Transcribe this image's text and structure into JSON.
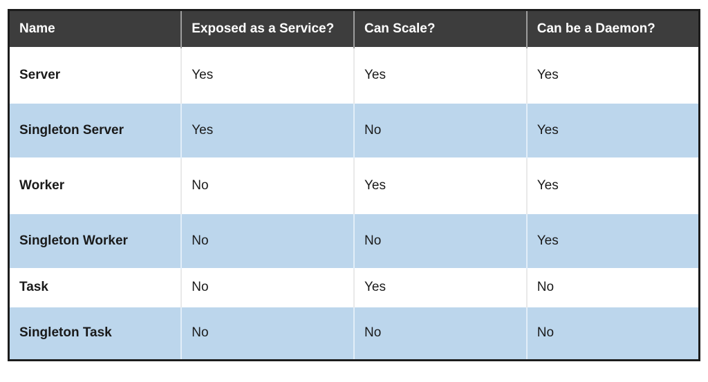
{
  "colors": {
    "header_bg": "#3D3D3D",
    "header_text": "#FFFFFF",
    "stripe_blue": "#BCD6EC",
    "row_white": "#FFFFFF",
    "border_dark": "#1C1C1C",
    "body_text": "#1A1A1A"
  },
  "chart_data": {
    "type": "table",
    "title": "",
    "columns": [
      "Name",
      "Exposed as a Service?",
      "Can Scale?",
      "Can be a Daemon?"
    ],
    "rows": [
      [
        "Server",
        "Yes",
        "Yes",
        "Yes"
      ],
      [
        "Singleton Server",
        "Yes",
        "No",
        "Yes"
      ],
      [
        "Worker",
        "No",
        "Yes",
        "Yes"
      ],
      [
        "Singleton Worker",
        "No",
        "No",
        "Yes"
      ],
      [
        "Task",
        "No",
        "Yes",
        "No"
      ],
      [
        "Singleton Task",
        "No",
        "No",
        "No"
      ]
    ],
    "layout_hints": {
      "striped_rows": "even rows light blue",
      "header_style": "dark bar with white bold text",
      "column_count": 4,
      "equal_column_widths": true
    }
  }
}
